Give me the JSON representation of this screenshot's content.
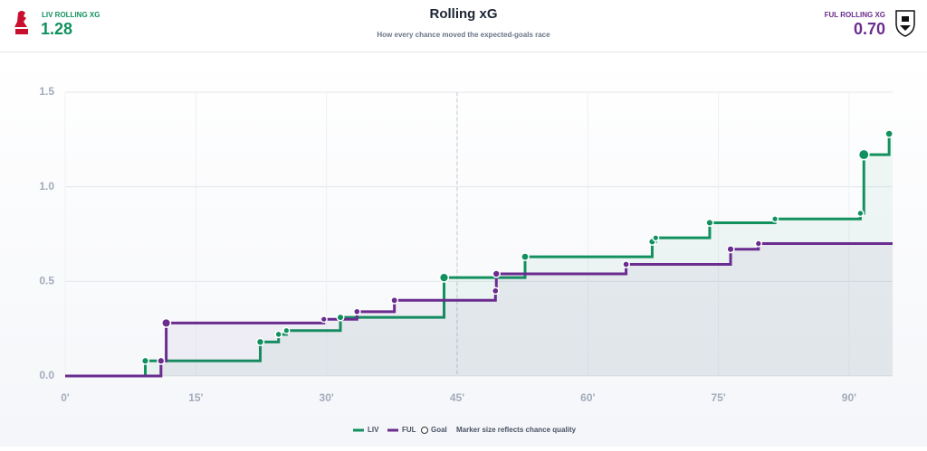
{
  "header": {
    "home_label": "LIV ROLLING XG",
    "home_value": "1.28",
    "away_label": "FUL ROLLING XG",
    "away_value": "0.70"
  },
  "chart_data": {
    "type": "step",
    "title": "Rolling xG",
    "subtitle": "How every chance moved the expected-goals race",
    "xlim": [
      0,
      95
    ],
    "ylim": [
      0,
      1.5
    ],
    "xticks": [
      {
        "value": 0,
        "label": "0'"
      },
      {
        "value": 15,
        "label": "15'"
      },
      {
        "value": 30,
        "label": "30'"
      },
      {
        "value": 45,
        "label": "45'"
      },
      {
        "value": 60,
        "label": "60'"
      },
      {
        "value": 75,
        "label": "75'"
      },
      {
        "value": 90,
        "label": "90'"
      }
    ],
    "yticks": [
      {
        "value": 0,
        "label": "0.0"
      },
      0.5,
      {
        "value": 1,
        "label": "1.0"
      },
      1.5
    ],
    "grid": true,
    "halftime": 45,
    "series": [
      {
        "name": "LIV",
        "color": "#12915f",
        "x": [
          9.2,
          22.4,
          24.5,
          25.4,
          31.6,
          43.5,
          52.8,
          67.4,
          67.8,
          74,
          81.5,
          91.3,
          91.7,
          94.6
        ],
        "values": [
          0.08,
          0.1,
          0.04,
          0.02,
          0.07,
          0.21,
          0.11,
          0.08,
          0.02,
          0.08,
          0.02,
          0.03,
          0.31,
          0.11
        ]
      },
      {
        "name": "FUL",
        "color": "#6a2c8e",
        "x": [
          11,
          11.6,
          29.7,
          33.5,
          37.8,
          49.4,
          49.5,
          64.4,
          76.4,
          79.6
        ],
        "values": [
          0.08,
          0.2,
          0.02,
          0.04,
          0.06,
          0.05,
          0.09,
          0.05,
          0.08,
          0.03
        ]
      }
    ],
    "legend_goal": "Goal",
    "note": "Marker size reflects chance quality"
  }
}
